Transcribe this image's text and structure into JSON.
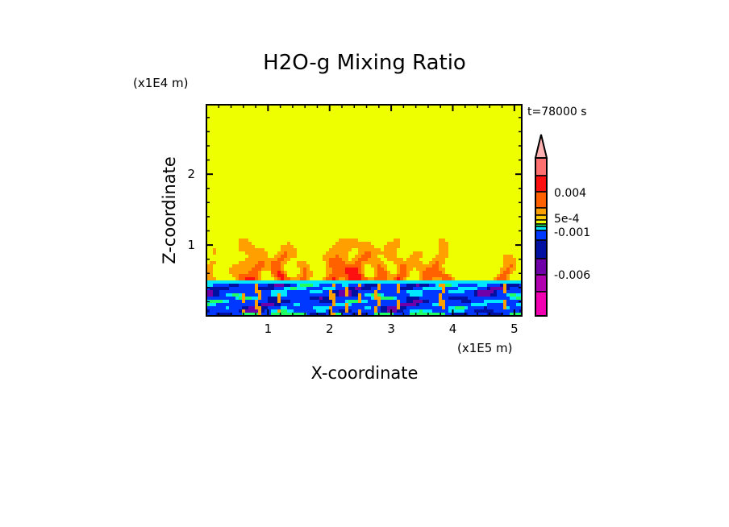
{
  "chart_data": {
    "type": "heatmap",
    "title": "H2O-g Mixing Ratio",
    "xlabel": "X-coordinate",
    "ylabel": "Z-coordinate",
    "x_unit": "(x1E5 m)",
    "y_unit": "(x1E4 m)",
    "time_label": "t=78000 s",
    "xlim": [
      0,
      5.12
    ],
    "ylim": [
      0,
      2.98
    ],
    "xticks": [
      "1",
      "2",
      "3",
      "4",
      "5"
    ],
    "xtick_values": [
      1,
      2,
      3,
      4,
      5
    ],
    "yticks": [
      "1",
      "2"
    ],
    "ytick_values": [
      1,
      2
    ],
    "colorbar": {
      "labels": [
        "0.004",
        "5e-4",
        "-0.001",
        "-0.006"
      ],
      "colors": [
        "#ffb0b0",
        "#ff7070",
        "#ff1010",
        "#ff6000",
        "#ffa000",
        "#ffcc00",
        "#eeff00",
        "#20ff60",
        "#00e8ff",
        "#0038ff",
        "#0010a0",
        "#7000a8",
        "#b000b0",
        "#f000b0"
      ],
      "extend": "max"
    }
  }
}
